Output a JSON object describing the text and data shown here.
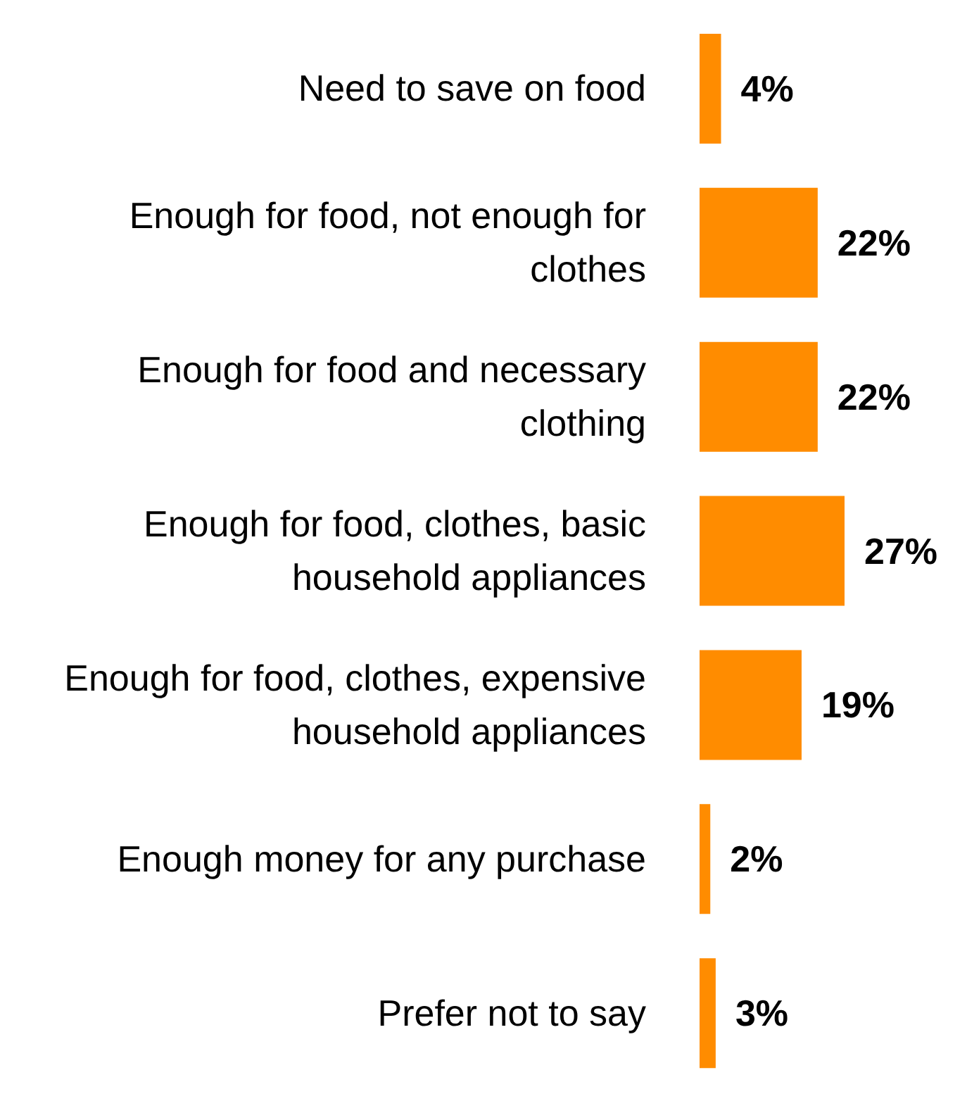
{
  "chart_data": {
    "type": "bar",
    "orientation": "horizontal",
    "categories": [
      "Need to save on food",
      "Enough for food, not enough for clothes",
      "Enough for food and necessary clothing",
      "Enough for food, clothes, basic household appliances",
      "Enough for food, clothes, expensive household appliances",
      "Enough money for any purchase",
      "Prefer not to say"
    ],
    "values": [
      4,
      22,
      22,
      27,
      19,
      2,
      3
    ],
    "value_labels": [
      "4%",
      "22%",
      "22%",
      "27%",
      "19%",
      "2%",
      "3%"
    ],
    "color": "#ff8c00",
    "grid": false,
    "legend": false
  }
}
